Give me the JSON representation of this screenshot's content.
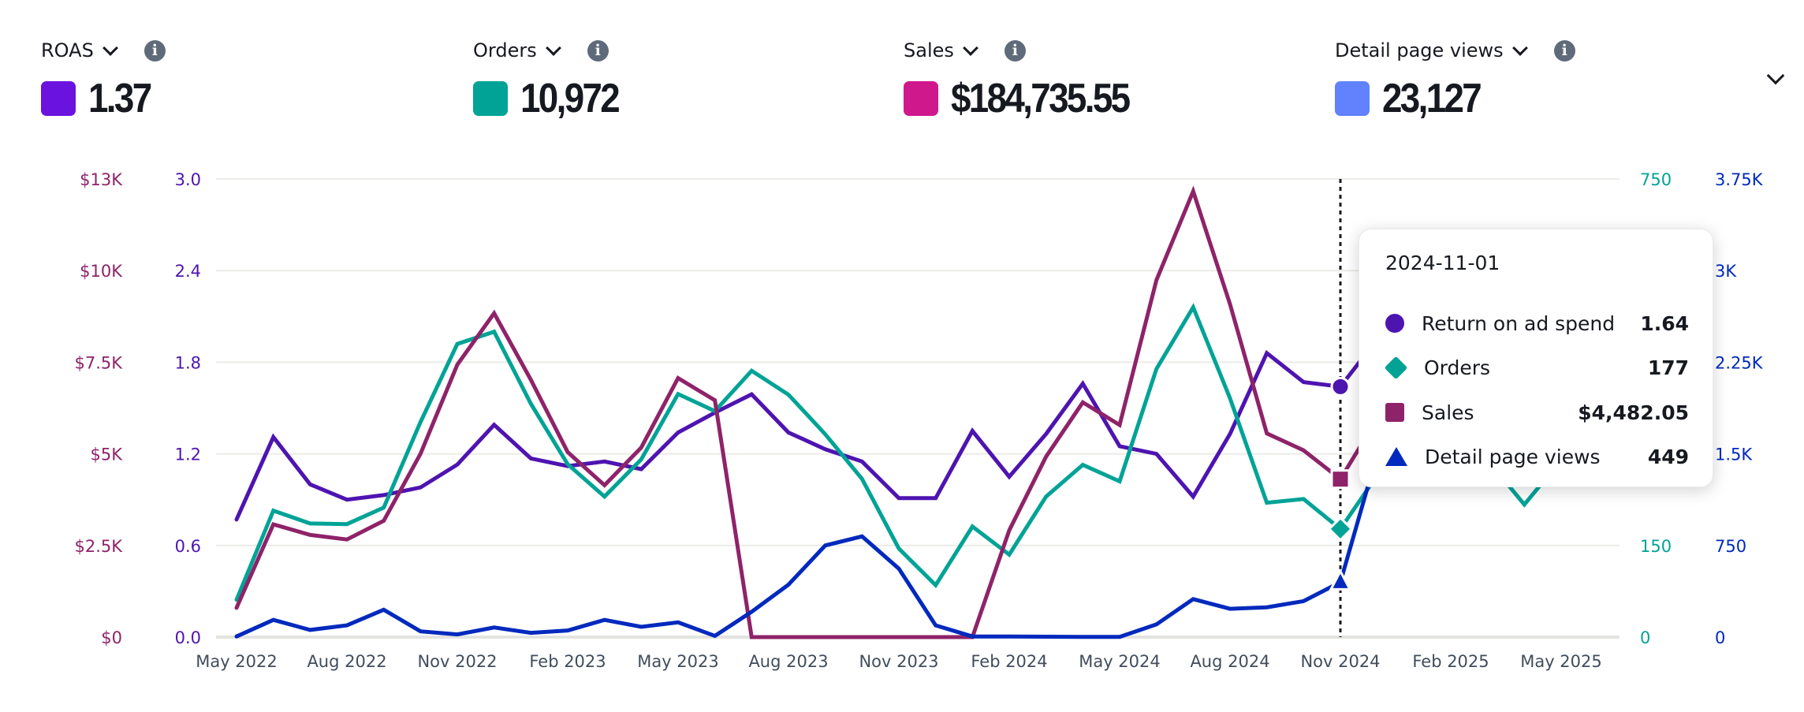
{
  "metrics": [
    {
      "label": "ROAS",
      "value": "1.37",
      "color": "#6a13de"
    },
    {
      "label": "Orders",
      "value": "10,972",
      "color": "#01a396"
    },
    {
      "label": "Sales",
      "value": "$184,735.55",
      "color": "#d0188d"
    },
    {
      "label": "Detail page views",
      "value": "23,127",
      "color": "#6181fd"
    }
  ],
  "info_icon_glyph": "i",
  "tooltip": {
    "date": "2024-11-01",
    "rows": [
      {
        "name": "Return on ad spend",
        "value": "1.64",
        "marker": "circle",
        "color": "#4e14b0"
      },
      {
        "name": "Orders",
        "value": "177",
        "marker": "diamond",
        "color": "#01a396"
      },
      {
        "name": "Sales",
        "value": "$4,482.05",
        "marker": "square",
        "color": "#8e2369"
      },
      {
        "name": "Detail page views",
        "value": "449",
        "marker": "triangle",
        "color": "#0029bd"
      }
    ]
  },
  "chart_data": {
    "type": "line",
    "title": "",
    "x": [
      "2022-05",
      "2022-06",
      "2022-07",
      "2022-08",
      "2022-09",
      "2022-10",
      "2022-11",
      "2022-12",
      "2023-01",
      "2023-02",
      "2023-03",
      "2023-04",
      "2023-05",
      "2023-06",
      "2023-07",
      "2023-08",
      "2023-09",
      "2023-10",
      "2023-11",
      "2023-12",
      "2024-01",
      "2024-02",
      "2024-03",
      "2024-04",
      "2024-05",
      "2024-06",
      "2024-07",
      "2024-08",
      "2024-09",
      "2024-10",
      "2024-11",
      "2024-12",
      "2025-01",
      "2025-02",
      "2025-03",
      "2025-04",
      "2025-05"
    ],
    "x_tick_labels": [
      "May 2022",
      "Aug 2022",
      "Nov 2022",
      "Feb 2023",
      "May 2023",
      "Aug 2023",
      "Nov 2023",
      "Feb 2024",
      "May 2024",
      "Aug 2024",
      "Nov 2024",
      "Feb 2025",
      "May 2025"
    ],
    "x_tick_every": 3,
    "highlight_index": 30,
    "grid": true,
    "legend": "none",
    "axes": {
      "left_outer": {
        "name": "Sales",
        "ticks": [
          "$0",
          "$2.5K",
          "$5K",
          "$7.5K",
          "$10K",
          "$13K"
        ],
        "range": [
          0,
          13000
        ],
        "color": "#8e2369"
      },
      "left_inner": {
        "name": "ROAS",
        "ticks": [
          "0.0",
          "0.6",
          "1.2",
          "1.8",
          "2.4",
          "3.0"
        ],
        "range": [
          0,
          3.0
        ],
        "color": "#4e14b0"
      },
      "right_inner": {
        "name": "Orders",
        "ticks": [
          "0",
          "150",
          "",
          "",
          "",
          "750"
        ],
        "range": [
          0,
          750
        ],
        "color": "#01a396"
      },
      "right_outer": {
        "name": "Detail page views",
        "ticks": [
          "0",
          "750",
          "1.5K",
          "2.25K",
          "3K",
          "3.75K"
        ],
        "range": [
          0,
          3750
        ],
        "color": "#0029bd"
      }
    },
    "series": [
      {
        "name": "Return on ad spend",
        "axis": "left_inner",
        "color": "#4e14b0",
        "values": [
          0.77,
          1.31,
          1.0,
          0.9,
          0.93,
          0.98,
          1.13,
          1.39,
          1.17,
          1.12,
          1.15,
          1.1,
          1.34,
          1.47,
          1.59,
          1.34,
          1.23,
          1.15,
          0.91,
          0.91,
          1.35,
          1.05,
          1.33,
          1.66,
          1.25,
          1.2,
          0.92,
          1.33,
          1.86,
          1.67,
          1.64,
          1.95,
          null,
          null,
          null,
          null,
          null
        ]
      },
      {
        "name": "Orders",
        "axis": "right_inner",
        "color": "#01a396",
        "values": [
          61,
          207,
          186,
          185,
          212,
          352,
          480,
          500,
          382,
          283,
          230,
          291,
          398,
          370,
          436,
          397,
          332,
          259,
          145,
          85,
          181,
          135,
          230,
          282,
          255,
          439,
          540,
          391,
          220,
          226,
          177,
          265,
          null,
          null,
          290,
          217,
          290
        ]
      },
      {
        "name": "Sales",
        "axis": "left_outer",
        "color": "#8e2369",
        "values": [
          830,
          3200,
          2900,
          2770,
          3300,
          5200,
          7730,
          9190,
          7300,
          5250,
          4310,
          5380,
          7350,
          6720,
          0,
          0,
          0,
          0,
          0,
          0,
          0,
          3030,
          5120,
          6660,
          6020,
          10130,
          12650,
          9450,
          5780,
          5300,
          4482.05,
          6200,
          null,
          null,
          null,
          null,
          null
        ]
      },
      {
        "name": "Detail page views",
        "axis": "right_outer",
        "color": "#0029bd",
        "values": [
          5,
          141,
          59,
          96,
          224,
          47,
          22,
          79,
          35,
          54,
          141,
          84,
          121,
          10,
          207,
          429,
          750,
          824,
          560,
          96,
          5,
          5,
          3,
          2,
          2,
          104,
          311,
          232,
          244,
          294,
          449,
          1500,
          null,
          null,
          null,
          null,
          null
        ]
      }
    ]
  }
}
